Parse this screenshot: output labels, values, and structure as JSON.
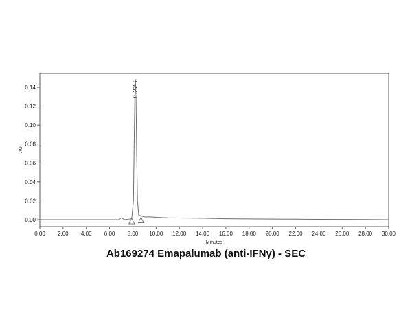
{
  "chart_data": {
    "type": "line",
    "title": "Ab169274 Emapalumab (anti-IFNγ) - SEC",
    "xlabel": "Minutes",
    "ylabel": "AU",
    "xlim": [
      0,
      30
    ],
    "ylim": [
      -0.01,
      0.15
    ],
    "x_ticks": [
      "0.00",
      "2.00",
      "4.00",
      "6.00",
      "8.00",
      "10.00",
      "12.00",
      "14.00",
      "16.00",
      "18.00",
      "20.00",
      "22.00",
      "24.00",
      "26.00",
      "28.00",
      "30.00"
    ],
    "y_ticks": [
      "0.00",
      "0.02",
      "0.04",
      "0.06",
      "0.08",
      "0.10",
      "0.12",
      "0.14"
    ],
    "grid": false,
    "series": [
      {
        "color": "#6f6f6f",
        "x": [
          0.0,
          2.0,
          4.0,
          6.0,
          6.8,
          7.0,
          7.3,
          7.6,
          7.9,
          8.05,
          8.12,
          8.18,
          8.223,
          8.27,
          8.33,
          8.4,
          8.5,
          8.7,
          9.0,
          9.5,
          10.0,
          11.0,
          12.0,
          14.0,
          16.0,
          18.0,
          20.0,
          22.0,
          24.0,
          26.0,
          28.0,
          30.0
        ],
        "y": [
          0.0,
          0.0,
          0.0,
          0.0,
          0.0,
          0.002,
          0.0,
          0.0005,
          0.001,
          0.02,
          0.09,
          0.135,
          0.148,
          0.13,
          0.07,
          0.02,
          0.005,
          0.004,
          0.003,
          0.003,
          0.0025,
          0.002,
          0.0018,
          0.0015,
          0.001,
          0.0008,
          0.0006,
          0.0005,
          0.0004,
          0.0003,
          0.0002,
          0.0
        ]
      }
    ],
    "annotations": [
      {
        "text": "8.223",
        "x": 8.223,
        "y": 0.148
      }
    ],
    "integration_markers": [
      {
        "x": 7.9,
        "y": 0.0
      },
      {
        "x": 8.7,
        "y": 0.001
      }
    ]
  }
}
